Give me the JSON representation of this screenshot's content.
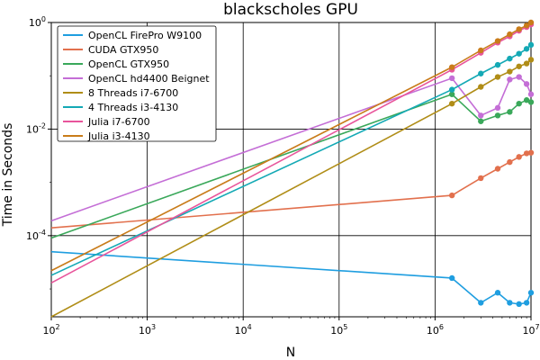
{
  "chart_data": {
    "type": "line",
    "title": "blackscholes GPU",
    "xlabel": "N",
    "ylabel": "Time in Seconds",
    "xscale": "log",
    "yscale": "log",
    "xlim": [
      100,
      10000000
    ],
    "ylim": [
      3e-06,
      1
    ],
    "grid": true,
    "legend_position": "top-left",
    "x_ticks": [
      {
        "value": 100,
        "base": "10",
        "exp": "2"
      },
      {
        "value": 1000,
        "base": "10",
        "exp": "3"
      },
      {
        "value": 10000,
        "base": "10",
        "exp": "4"
      },
      {
        "value": 100000,
        "base": "10",
        "exp": "5"
      },
      {
        "value": 1000000,
        "base": "10",
        "exp": "6"
      },
      {
        "value": 10000000,
        "base": "10",
        "exp": "7"
      }
    ],
    "y_ticks": [
      {
        "value": 0.0001,
        "base": "10",
        "exp": "-4"
      },
      {
        "value": 0.01,
        "base": "10",
        "exp": "-2"
      },
      {
        "value": 1,
        "base": "10",
        "exp": "0"
      }
    ],
    "series": [
      {
        "name": "OpenCL FirePro W9100",
        "color": "#1f9ee0",
        "x": [
          100,
          1500000,
          3000000,
          4500000,
          6000000,
          7500000,
          9000000,
          10000000
        ],
        "y": [
          5e-05,
          1.6e-05,
          5.5e-06,
          8.5e-06,
          5.5e-06,
          5.2e-06,
          5.5e-06,
          8.5e-06
        ]
      },
      {
        "name": "CUDA GTX950",
        "color": "#e2704d",
        "x": [
          100,
          1500000,
          3000000,
          4500000,
          6000000,
          7500000,
          9000000,
          10000000
        ],
        "y": [
          0.00014,
          0.00057,
          0.0012,
          0.0018,
          0.0024,
          0.003,
          0.0035,
          0.0036
        ]
      },
      {
        "name": "OpenCL GTX950",
        "color": "#3aa85a",
        "x": [
          100,
          1500000,
          3000000,
          4500000,
          6000000,
          7500000,
          9000000,
          10000000
        ],
        "y": [
          9e-05,
          0.045,
          0.014,
          0.018,
          0.021,
          0.03,
          0.035,
          0.032
        ]
      },
      {
        "name": "OpenCL hd4400 Beignet",
        "color": "#c46ed6",
        "x": [
          100,
          1500000,
          3000000,
          4500000,
          6000000,
          7500000,
          9000000,
          10000000
        ],
        "y": [
          0.00019,
          0.09,
          0.018,
          0.025,
          0.085,
          0.095,
          0.07,
          0.045
        ]
      },
      {
        "name": "8 Threads i7-6700",
        "color": "#b08d17",
        "x": [
          100,
          1500000,
          3000000,
          4500000,
          6000000,
          7500000,
          9000000,
          10000000
        ],
        "y": [
          3e-06,
          0.03,
          0.062,
          0.095,
          0.12,
          0.15,
          0.17,
          0.2
        ]
      },
      {
        "name": "4 Threads i3-4130",
        "color": "#14a9b5",
        "x": [
          100,
          1500000,
          3000000,
          4500000,
          6000000,
          7500000,
          9000000,
          10000000
        ],
        "y": [
          1.8e-05,
          0.055,
          0.11,
          0.16,
          0.21,
          0.26,
          0.32,
          0.38
        ]
      },
      {
        "name": "Julia i7-6700",
        "color": "#e8559b",
        "x": [
          100,
          1500000,
          3000000,
          4500000,
          6000000,
          7500000,
          9000000,
          10000000
        ],
        "y": [
          1.3e-05,
          0.13,
          0.27,
          0.42,
          0.55,
          0.7,
          0.82,
          0.92
        ]
      },
      {
        "name": "Julia i3-4130",
        "color": "#c97c1a",
        "x": [
          100,
          1500000,
          3000000,
          4500000,
          6000000,
          7500000,
          9000000,
          10000000
        ],
        "y": [
          2.2e-05,
          0.145,
          0.3,
          0.45,
          0.6,
          0.75,
          0.88,
          1.0
        ]
      }
    ]
  }
}
